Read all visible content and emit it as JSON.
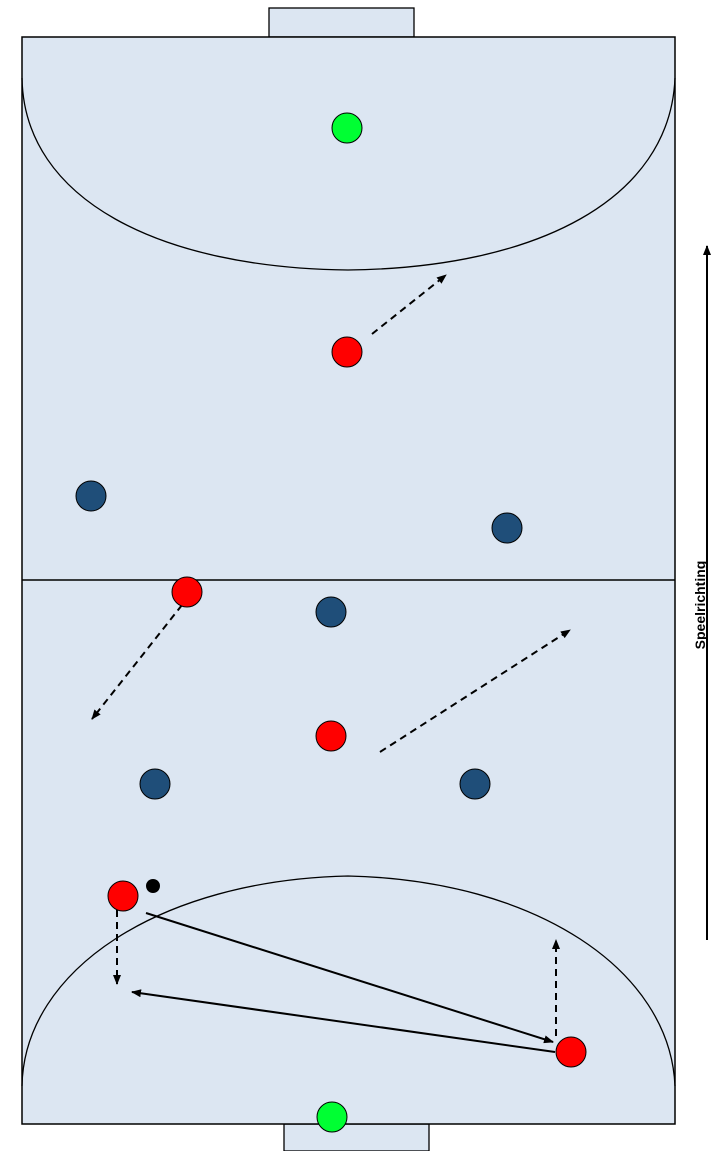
{
  "caption": "Speelrichting",
  "colors": {
    "field": "#dce6f2",
    "line": "#000000",
    "attacker": "#ff0000",
    "defender": "#1f4e79",
    "goalkeeper": "#00ff33",
    "ball": "#000000",
    "background": "#ffffff"
  }
}
